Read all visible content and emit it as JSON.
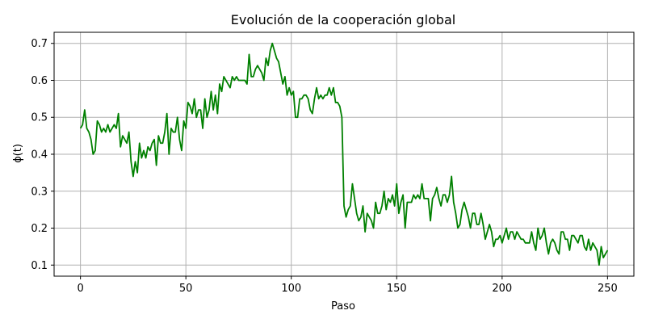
{
  "chart_data": {
    "type": "line",
    "title": "Evolución de la cooperación global",
    "xlabel": "Paso",
    "ylabel": "ϕ(t)",
    "xlim": [
      -12.5,
      262.5
    ],
    "ylim": [
      0.07,
      0.73
    ],
    "xticks": [
      0,
      50,
      100,
      150,
      200,
      250
    ],
    "xtick_labels": [
      "0",
      "50",
      "100",
      "150",
      "200",
      "250"
    ],
    "yticks": [
      0.1,
      0.2,
      0.3,
      0.4,
      0.5,
      0.6,
      0.7
    ],
    "ytick_labels": [
      "0.1",
      "0.2",
      "0.3",
      "0.4",
      "0.5",
      "0.6",
      "0.7"
    ],
    "grid": true,
    "line_color": "#008000",
    "grid_color": "#b0b0b0",
    "series": [
      {
        "values": [
          0.47,
          0.48,
          0.52,
          0.47,
          0.46,
          0.44,
          0.4,
          0.41,
          0.49,
          0.48,
          0.46,
          0.47,
          0.46,
          0.48,
          0.46,
          0.47,
          0.48,
          0.47,
          0.51,
          0.42,
          0.45,
          0.44,
          0.43,
          0.46,
          0.38,
          0.34,
          0.38,
          0.35,
          0.43,
          0.39,
          0.41,
          0.39,
          0.42,
          0.41,
          0.43,
          0.44,
          0.37,
          0.45,
          0.43,
          0.43,
          0.46,
          0.51,
          0.4,
          0.47,
          0.46,
          0.46,
          0.5,
          0.44,
          0.41,
          0.49,
          0.47,
          0.54,
          0.53,
          0.51,
          0.55,
          0.5,
          0.52,
          0.52,
          0.47,
          0.55,
          0.5,
          0.52,
          0.57,
          0.52,
          0.56,
          0.51,
          0.59,
          0.57,
          0.61,
          0.6,
          0.59,
          0.58,
          0.61,
          0.6,
          0.61,
          0.6,
          0.6,
          0.6,
          0.6,
          0.59,
          0.67,
          0.61,
          0.61,
          0.63,
          0.64,
          0.63,
          0.62,
          0.6,
          0.66,
          0.64,
          0.68,
          0.7,
          0.68,
          0.66,
          0.65,
          0.62,
          0.59,
          0.61,
          0.56,
          0.58,
          0.56,
          0.57,
          0.5,
          0.5,
          0.55,
          0.55,
          0.56,
          0.56,
          0.55,
          0.52,
          0.51,
          0.55,
          0.58,
          0.55,
          0.56,
          0.55,
          0.56,
          0.56,
          0.58,
          0.56,
          0.58,
          0.54,
          0.54,
          0.53,
          0.5,
          0.26,
          0.23,
          0.25,
          0.26,
          0.32,
          0.28,
          0.24,
          0.22,
          0.23,
          0.26,
          0.19,
          0.24,
          0.23,
          0.22,
          0.2,
          0.27,
          0.24,
          0.24,
          0.26,
          0.3,
          0.25,
          0.28,
          0.27,
          0.29,
          0.26,
          0.32,
          0.24,
          0.27,
          0.29,
          0.2,
          0.27,
          0.27,
          0.27,
          0.29,
          0.28,
          0.29,
          0.28,
          0.32,
          0.28,
          0.28,
          0.28,
          0.22,
          0.28,
          0.29,
          0.31,
          0.28,
          0.26,
          0.29,
          0.29,
          0.27,
          0.29,
          0.34,
          0.27,
          0.24,
          0.2,
          0.21,
          0.25,
          0.27,
          0.25,
          0.23,
          0.2,
          0.24,
          0.24,
          0.21,
          0.21,
          0.24,
          0.21,
          0.17,
          0.19,
          0.21,
          0.19,
          0.15,
          0.17,
          0.17,
          0.18,
          0.16,
          0.18,
          0.2,
          0.17,
          0.19,
          0.19,
          0.17,
          0.19,
          0.18,
          0.17,
          0.17,
          0.16,
          0.16,
          0.16,
          0.19,
          0.16,
          0.14,
          0.2,
          0.17,
          0.18,
          0.2,
          0.16,
          0.13,
          0.16,
          0.17,
          0.16,
          0.14,
          0.13,
          0.19,
          0.19,
          0.17,
          0.17,
          0.14,
          0.18,
          0.18,
          0.17,
          0.16,
          0.18,
          0.18,
          0.15,
          0.14,
          0.17,
          0.14,
          0.16,
          0.15,
          0.14,
          0.1,
          0.15,
          0.12,
          0.13,
          0.14
        ]
      }
    ]
  }
}
